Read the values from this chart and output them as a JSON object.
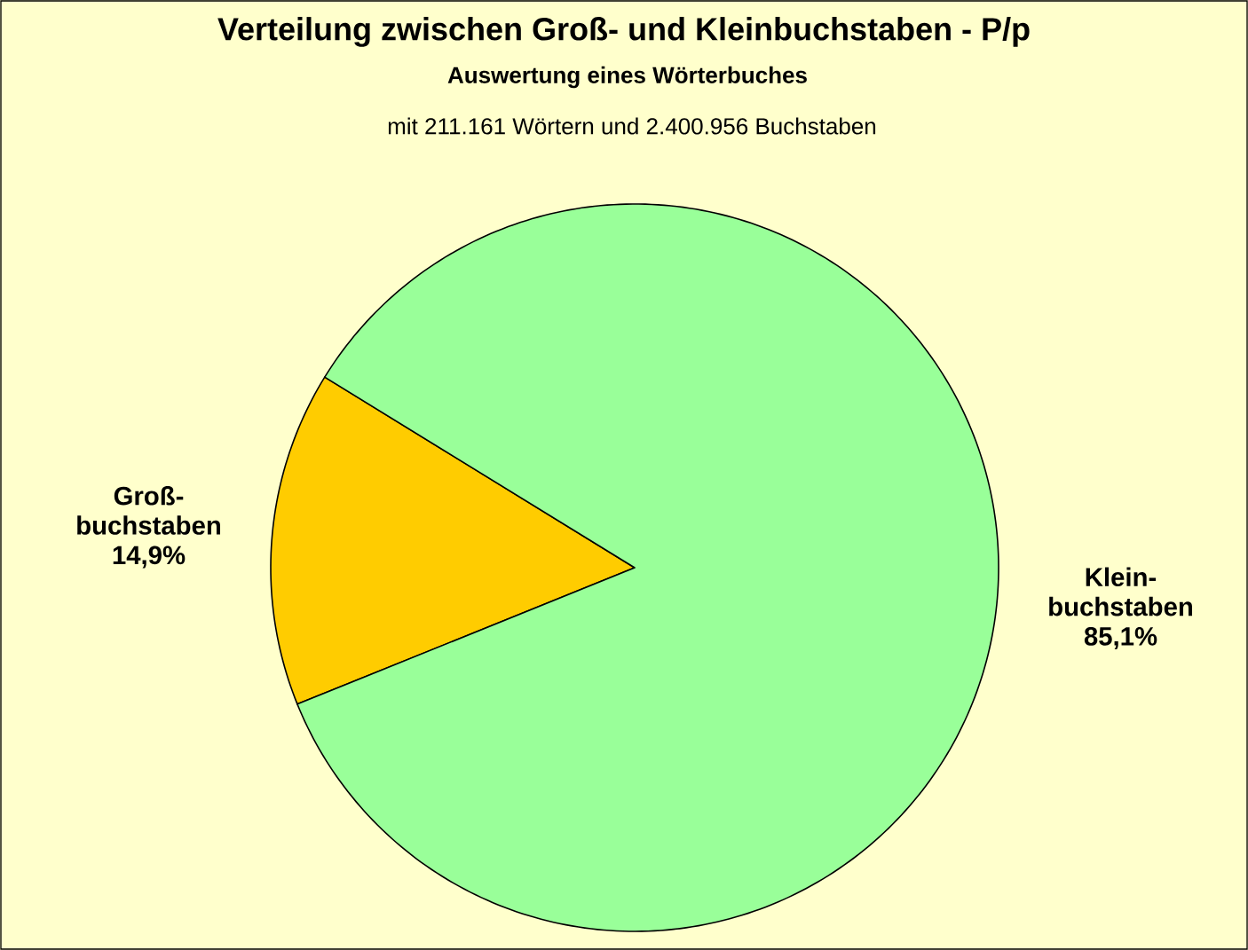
{
  "chart_data": {
    "type": "pie",
    "title": "Verteilung zwischen Groß- und  Kleinbuchstaben - P/p",
    "subtitle": "Auswertung eines Wörterbuches",
    "annotations": [
      "mit 211.161 Wörtern und 2.400.956 Buchstaben"
    ],
    "categories": [
      "Groß-buchstaben",
      "Klein-buchstaben"
    ],
    "values": [
      14.9,
      85.1
    ],
    "colors": [
      "#ffcc00",
      "#99ff99"
    ],
    "value_labels": [
      "14,9%",
      "85,1%"
    ]
  }
}
